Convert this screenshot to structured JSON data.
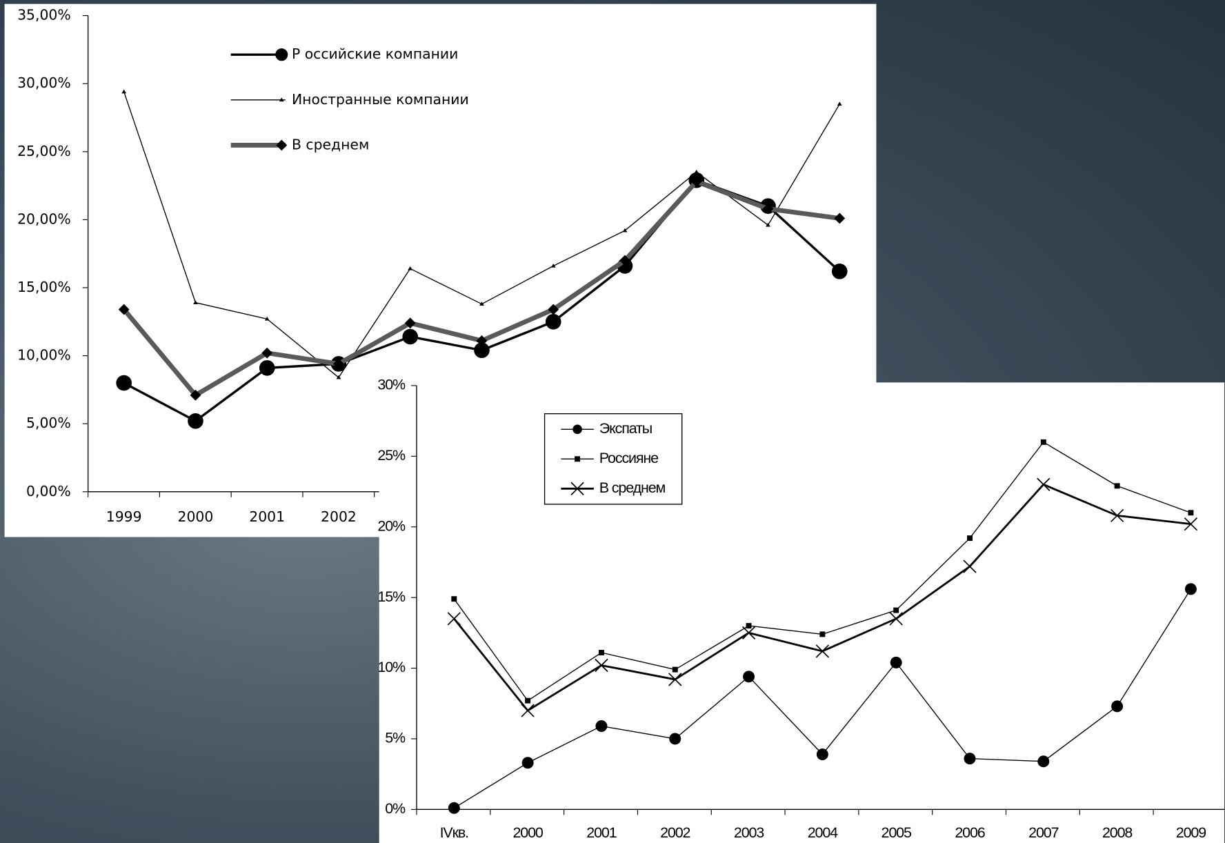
{
  "chart_data": [
    {
      "type": "line",
      "categories": [
        "1999",
        "2000",
        "2001",
        "2002",
        null,
        null,
        null,
        null,
        null,
        null,
        null
      ],
      "ylim": [
        0,
        35
      ],
      "yticks": [
        {
          "value": 0,
          "label": "0,00%"
        },
        {
          "value": 5,
          "label": "5,00%"
        },
        {
          "value": 10,
          "label": "10,00%"
        },
        {
          "value": 15,
          "label": "15,00%"
        },
        {
          "value": 20,
          "label": "20,00%"
        },
        {
          "value": 25,
          "label": "25,00%"
        },
        {
          "value": 30,
          "label": "30,00%"
        },
        {
          "value": 35,
          "label": "35,00%"
        }
      ],
      "grid": false,
      "legend": "top",
      "series": [
        {
          "name": "Р оссийские компании",
          "color": "#000000",
          "marker": "circle",
          "line_width": 3,
          "values": [
            8.0,
            5.2,
            9.1,
            9.4,
            11.4,
            10.4,
            12.5,
            16.6,
            22.9,
            21.0,
            16.2
          ]
        },
        {
          "name": "Иностранные компании",
          "color": "#000000",
          "marker": "triangle",
          "line_width": 1.2,
          "values": [
            29.4,
            13.9,
            12.7,
            8.4,
            16.4,
            13.8,
            16.6,
            19.2,
            23.5,
            19.6,
            28.5
          ]
        },
        {
          "name": "В  среднем",
          "color": "#5a5a5a",
          "marker": "diamond",
          "line_width": 6,
          "values": [
            13.4,
            7.1,
            10.2,
            9.4,
            12.4,
            11.1,
            13.4,
            17.0,
            22.8,
            20.8,
            20.1
          ]
        }
      ]
    },
    {
      "type": "line",
      "categories": [
        "IVкв.",
        "2000",
        "2001",
        "2002",
        "2003",
        "2004",
        "2005",
        "2006",
        "2007",
        "2008",
        "2009"
      ],
      "ylim": [
        0,
        30
      ],
      "yticks": [
        {
          "value": 0,
          "label": "0%"
        },
        {
          "value": 5,
          "label": "5%"
        },
        {
          "value": 10,
          "label": "10%"
        },
        {
          "value": 15,
          "label": "15%"
        },
        {
          "value": 20,
          "label": "20%"
        },
        {
          "value": 25,
          "label": "25%"
        },
        {
          "value": 30,
          "label": "30%"
        }
      ],
      "grid": false,
      "legend": "top-left",
      "series": [
        {
          "name": "Экспаты",
          "color": "#000000",
          "marker": "circle",
          "line_width": 1.2,
          "values": [
            0.1,
            3.3,
            5.9,
            5.0,
            9.4,
            3.9,
            10.4,
            3.6,
            3.4,
            7.3,
            15.6
          ]
        },
        {
          "name": "Россияне",
          "color": "#000000",
          "marker": "square",
          "line_width": 1.2,
          "values": [
            14.9,
            7.7,
            11.1,
            9.9,
            13.0,
            12.4,
            14.1,
            19.2,
            26.0,
            22.9,
            21.0
          ]
        },
        {
          "name": "В среднем",
          "color": "#000000",
          "marker": "x",
          "line_width": 2.5,
          "values": [
            13.5,
            7.0,
            10.2,
            9.2,
            12.5,
            11.2,
            13.5,
            17.2,
            23.0,
            20.8,
            20.2
          ]
        }
      ]
    }
  ]
}
